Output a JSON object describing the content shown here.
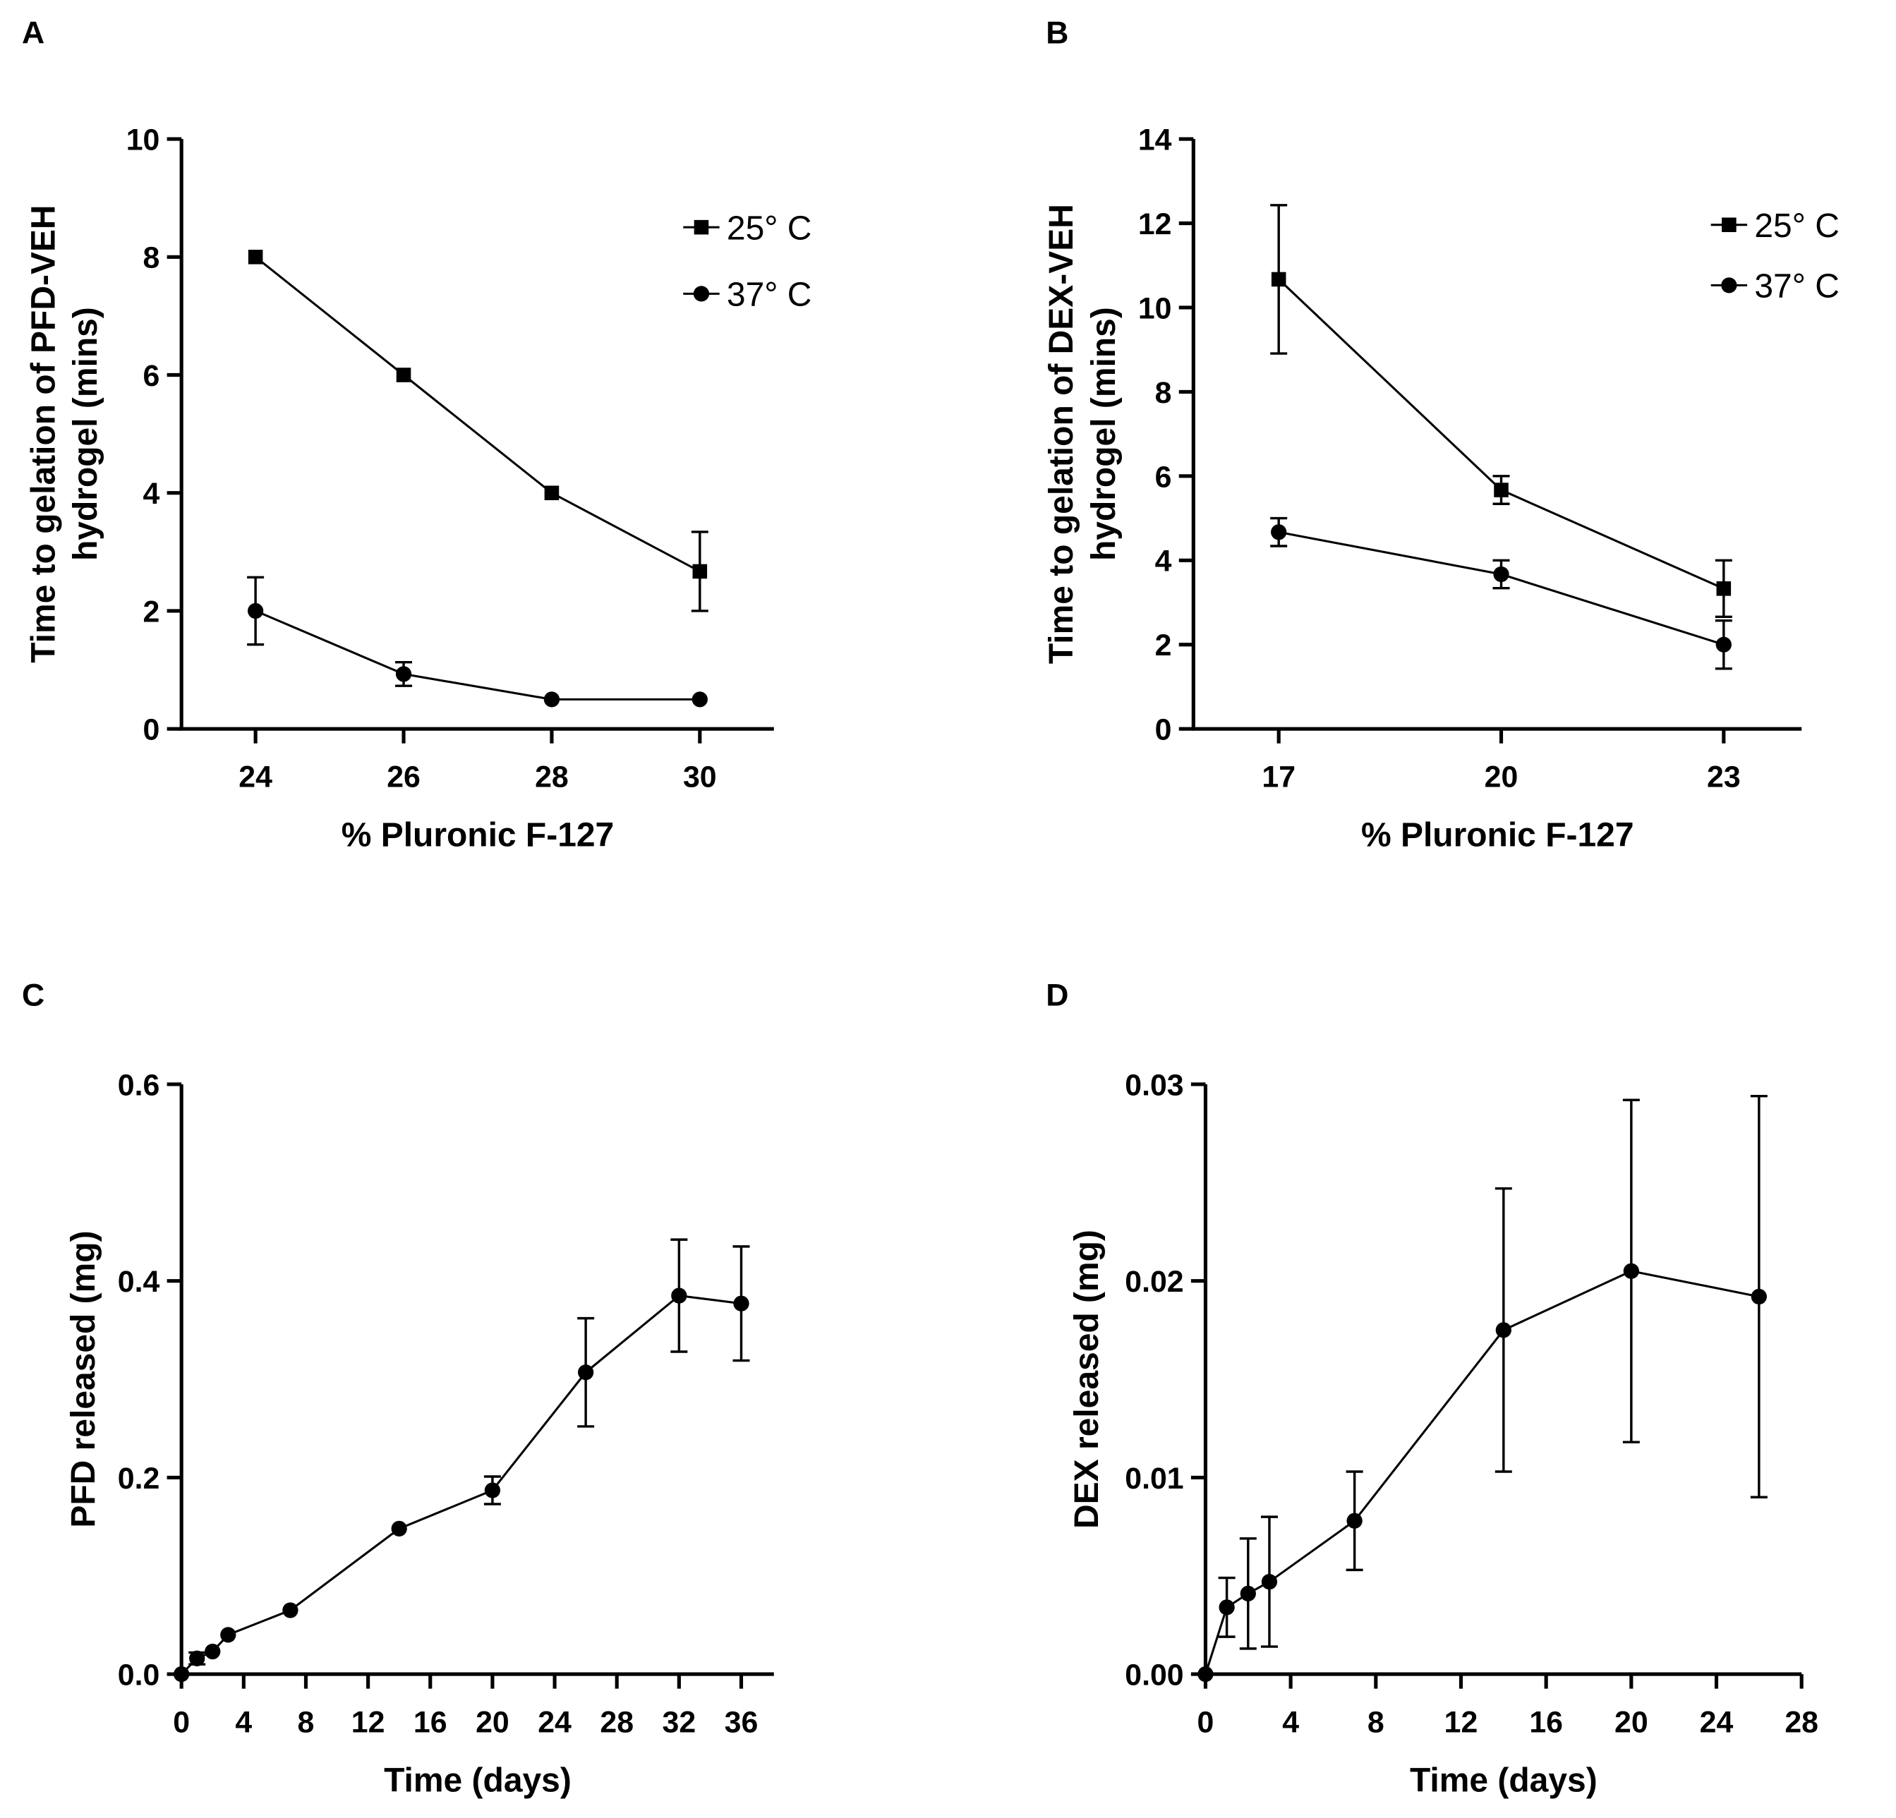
{
  "chart_data": [
    {
      "panel": "A",
      "type": "line",
      "xlabel": "% Pluronic F-127",
      "ylabel": [
        "Time to gelation of PFD-VEH",
        "hydrogel (mins)"
      ],
      "xlim": [
        23,
        31
      ],
      "ylim": [
        0,
        10
      ],
      "xticks": [
        24,
        26,
        28,
        30
      ],
      "yticks": [
        0,
        2,
        4,
        6,
        8,
        10
      ],
      "legend_position": "top-right",
      "grid": false,
      "series": [
        {
          "name": "25° C",
          "marker": "square",
          "x": [
            24,
            26,
            28,
            30
          ],
          "y": [
            8.0,
            6.0,
            4.0,
            2.67
          ],
          "err": [
            0,
            0,
            0,
            0.67
          ]
        },
        {
          "name": "37° C",
          "marker": "circle",
          "x": [
            24,
            26,
            28,
            30
          ],
          "y": [
            2.0,
            0.93,
            0.5,
            0.5
          ],
          "err": [
            0.57,
            0.2,
            0,
            0
          ]
        }
      ]
    },
    {
      "panel": "B",
      "type": "line",
      "xlabel": "% Pluronic F-127",
      "ylabel": [
        "Time to gelation of DEX-VEH",
        "hydrogel (mins)"
      ],
      "xlim": [
        15.85,
        24.05
      ],
      "ylim": [
        0,
        14
      ],
      "xticks": [
        17,
        20,
        23
      ],
      "yticks": [
        0,
        2,
        4,
        6,
        8,
        10,
        12,
        14
      ],
      "legend_position": "top-right",
      "grid": false,
      "series": [
        {
          "name": "25° C",
          "marker": "square",
          "x": [
            17,
            20,
            23
          ],
          "y": [
            10.67,
            5.67,
            3.33
          ],
          "err": [
            1.76,
            0.33,
            0.67
          ]
        },
        {
          "name": "37° C",
          "marker": "circle",
          "x": [
            17,
            20,
            23
          ],
          "y": [
            4.67,
            3.67,
            2.0
          ],
          "err": [
            0.33,
            0.33,
            0.57
          ]
        }
      ]
    },
    {
      "panel": "C",
      "type": "line",
      "xlabel": "Time (days)",
      "ylabel": [
        "PFD released (mg)"
      ],
      "xlim": [
        0,
        38.1
      ],
      "ylim": [
        0,
        0.6
      ],
      "xticks": [
        0,
        4,
        8,
        12,
        16,
        20,
        24,
        28,
        32,
        36
      ],
      "yticks": [
        "0.0",
        "0.2",
        "0.4",
        "0.6"
      ],
      "grid": false,
      "series": [
        {
          "name": "PFD",
          "marker": "circle",
          "x": [
            0,
            1,
            2,
            3,
            7,
            14,
            20,
            26,
            32,
            36
          ],
          "y": [
            0,
            0.016,
            0.023,
            0.04,
            0.065,
            0.148,
            0.187,
            0.307,
            0.385,
            0.377
          ],
          "err": [
            0,
            0.006,
            0,
            0,
            0,
            0,
            0.014,
            0.055,
            0.057,
            0.058
          ]
        }
      ]
    },
    {
      "panel": "D",
      "type": "line",
      "xlabel": "Time (days)",
      "ylabel": [
        "DEX released (mg)"
      ],
      "xlim": [
        0,
        28
      ],
      "ylim": [
        0,
        0.03
      ],
      "xticks": [
        0,
        4,
        8,
        12,
        16,
        20,
        24,
        28
      ],
      "yticks": [
        "0.00",
        "0.01",
        "0.02",
        "0.03"
      ],
      "grid": false,
      "series": [
        {
          "name": "DEX",
          "marker": "circle",
          "x": [
            0,
            1,
            2,
            3,
            7,
            14,
            20,
            26
          ],
          "y": [
            0,
            0.0034,
            0.0041,
            0.0047,
            0.0078,
            0.0175,
            0.0205,
            0.0192
          ],
          "err": [
            0,
            0.0015,
            0.0028,
            0.0033,
            0.0025,
            0.0072,
            0.0087,
            0.0102
          ]
        }
      ]
    }
  ]
}
